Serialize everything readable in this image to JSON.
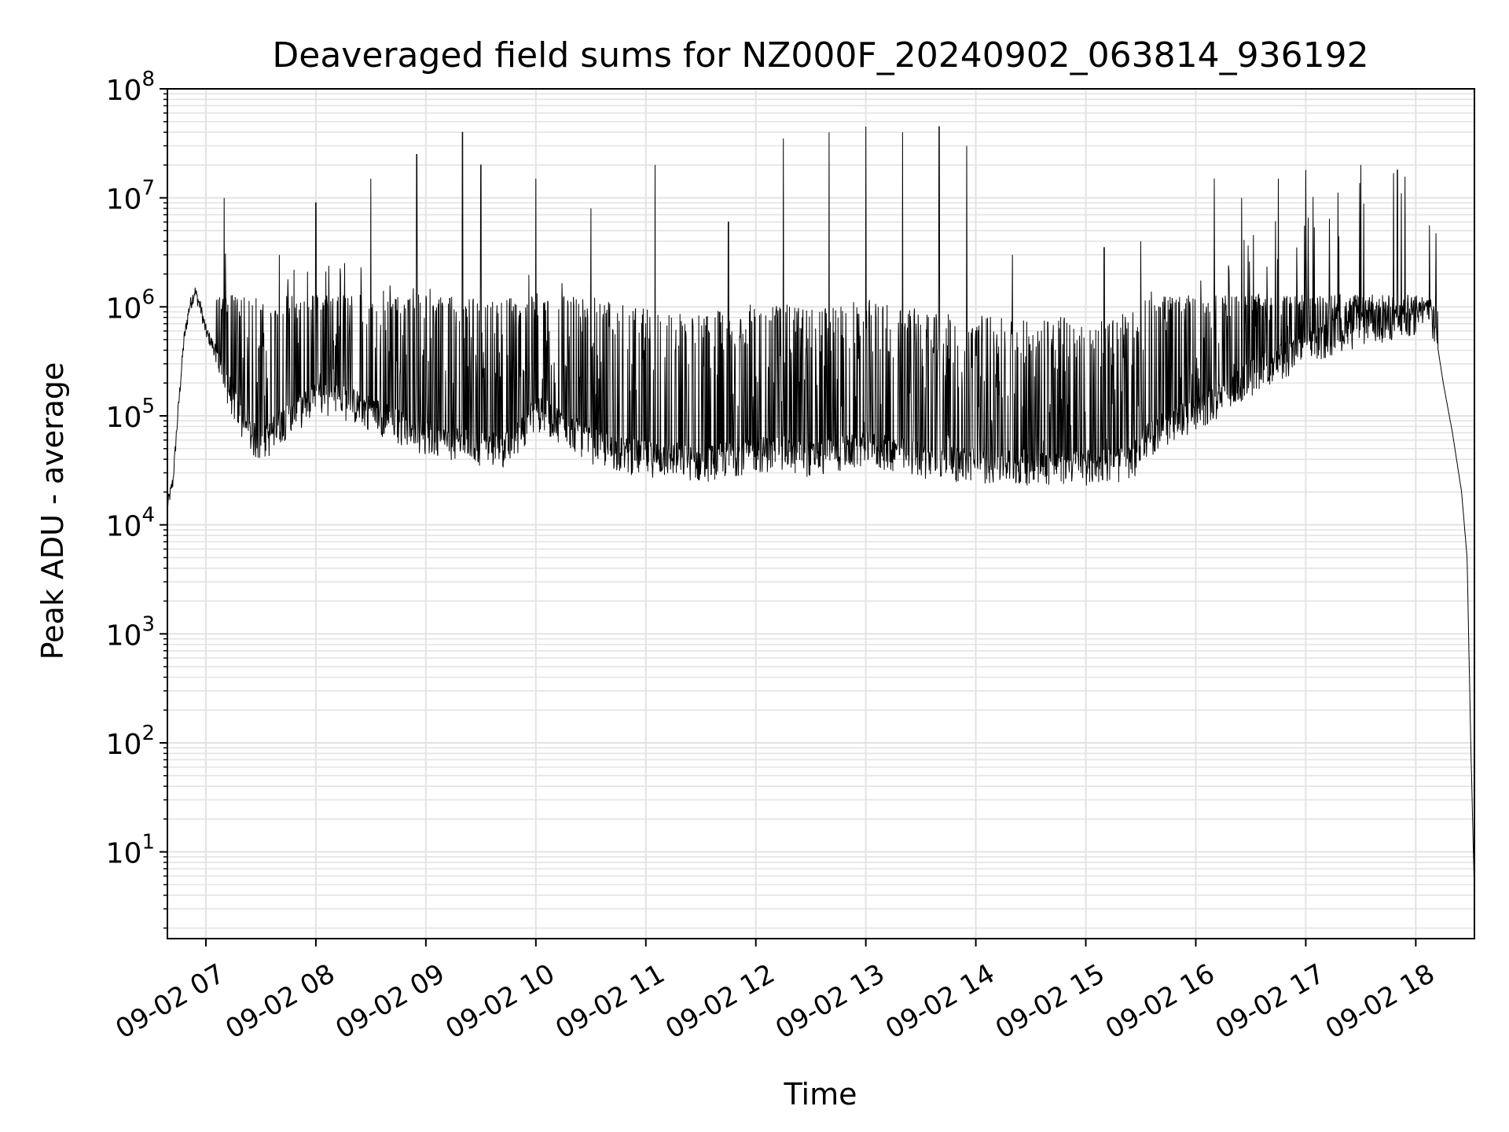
{
  "chart_data": {
    "type": "line",
    "title": "Deaveraged field sums for NZ000F_20240902_063814_936192",
    "xlabel": "Time",
    "ylabel": "Peak ADU - average",
    "yscale": "log",
    "ylim": [
      1.6,
      100000000
    ],
    "xlim": [
      "09-02 06:39",
      "09-02 18:32"
    ],
    "grid": "major and minor, light gray",
    "legend": "none",
    "line_color": "#000000",
    "x_ticks": [
      "09-02 07",
      "09-02 08",
      "09-02 09",
      "09-02 10",
      "09-02 11",
      "09-02 12",
      "09-02 13",
      "09-02 14",
      "09-02 15",
      "09-02 16",
      "09-02 17",
      "09-02 18"
    ],
    "y_ticks": [
      {
        "base": "10",
        "exp": "1",
        "value": 10
      },
      {
        "base": "10",
        "exp": "2",
        "value": 100
      },
      {
        "base": "10",
        "exp": "3",
        "value": 1000
      },
      {
        "base": "10",
        "exp": "4",
        "value": 10000
      },
      {
        "base": "10",
        "exp": "5",
        "value": 100000
      },
      {
        "base": "10",
        "exp": "6",
        "value": 1000000
      },
      {
        "base": "10",
        "exp": "7",
        "value": 10000000
      },
      {
        "base": "10",
        "exp": "8",
        "value": 100000000
      }
    ],
    "series": [
      {
        "x": [
          "06:39",
          "06:42",
          "06:45",
          "06:48",
          "06:51",
          "06:54",
          "06:57",
          "07:00",
          "07:05",
          "07:10",
          "07:15",
          "07:20",
          "07:25",
          "07:30",
          "07:35",
          "07:40",
          "07:50",
          "08:00",
          "08:15",
          "08:30",
          "08:45",
          "09:00",
          "09:15",
          "09:30",
          "09:45",
          "10:00",
          "10:15",
          "10:30",
          "10:45",
          "11:00",
          "11:15",
          "11:30",
          "11:45",
          "12:00",
          "12:15",
          "12:30",
          "12:45",
          "13:00",
          "13:15",
          "13:30",
          "13:45",
          "14:00",
          "14:15",
          "14:30",
          "14:45",
          "15:00",
          "15:15",
          "15:25",
          "15:30",
          "15:40",
          "15:50",
          "16:00",
          "16:15",
          "16:30",
          "16:45",
          "17:00",
          "17:15",
          "17:30",
          "17:45",
          "18:00",
          "18:05",
          "18:10",
          "18:15",
          "18:20",
          "18:25",
          "18:28",
          "18:30",
          "18:32"
        ],
        "y": [
          15000,
          25000,
          120000,
          500000,
          1000000,
          1400000,
          1000000,
          600000,
          400000,
          250000,
          150000,
          90000,
          70000,
          60000,
          70000,
          90000,
          120000,
          160000,
          150000,
          120000,
          90000,
          70000,
          60000,
          55000,
          55000,
          120000,
          90000,
          60000,
          50000,
          45000,
          45000,
          40000,
          45000,
          50000,
          50000,
          45000,
          50000,
          55000,
          50000,
          45000,
          40000,
          40000,
          38000,
          38000,
          38000,
          38000,
          40000,
          40000,
          60000,
          80000,
          100000,
          120000,
          160000,
          250000,
          350000,
          450000,
          600000,
          700000,
          800000,
          900000,
          1300000,
          700000,
          200000,
          70000,
          20000,
          5000,
          100,
          4
        ],
        "spikes": [
          {
            "x": "07:10",
            "y": 10000000
          },
          {
            "x": "07:40",
            "y": 3000000
          },
          {
            "x": "08:00",
            "y": 9000000
          },
          {
            "x": "08:30",
            "y": 15000000
          },
          {
            "x": "08:55",
            "y": 25000000
          },
          {
            "x": "09:20",
            "y": 40000000
          },
          {
            "x": "09:30",
            "y": 20000000
          },
          {
            "x": "10:00",
            "y": 15000000
          },
          {
            "x": "10:30",
            "y": 8000000
          },
          {
            "x": "11:05",
            "y": 20000000
          },
          {
            "x": "11:45",
            "y": 6000000
          },
          {
            "x": "12:15",
            "y": 35000000
          },
          {
            "x": "12:40",
            "y": 40000000
          },
          {
            "x": "13:00",
            "y": 45000000
          },
          {
            "x": "13:20",
            "y": 40000000
          },
          {
            "x": "13:40",
            "y": 45000000
          },
          {
            "x": "13:55",
            "y": 30000000
          },
          {
            "x": "14:20",
            "y": 3000000
          },
          {
            "x": "15:10",
            "y": 3500000
          },
          {
            "x": "15:30",
            "y": 4000000
          },
          {
            "x": "16:10",
            "y": 15000000
          },
          {
            "x": "16:25",
            "y": 10000000
          },
          {
            "x": "16:45",
            "y": 15000000
          },
          {
            "x": "17:00",
            "y": 18000000
          },
          {
            "x": "17:30",
            "y": 20000000
          },
          {
            "x": "17:50",
            "y": 18000000
          }
        ]
      }
    ]
  }
}
